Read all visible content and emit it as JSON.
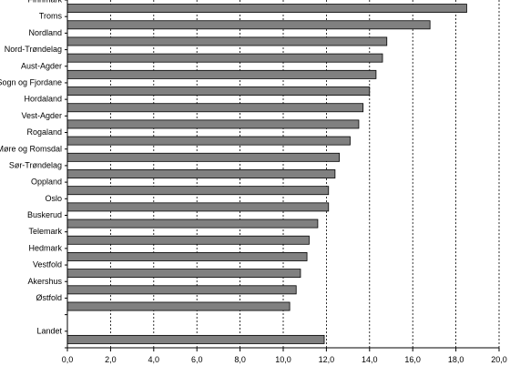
{
  "chart_data": {
    "type": "bar",
    "orientation": "horizontal",
    "categories": [
      "Finnmark",
      "Troms",
      "Nordland",
      "Nord-Trøndelag",
      "Aust-Agder",
      "Sogn og Fjordane",
      "Hordaland",
      "Vest-Agder",
      "Rogaland",
      "Møre og Romsdal",
      "Sør-Trøndelag",
      "Oppland",
      "Oslo",
      "Buskerud",
      "Telemark",
      "Hedmark",
      "Vestfold",
      "Akershus",
      "Østfold",
      "",
      "Landet"
    ],
    "values": [
      18.5,
      16.8,
      14.8,
      14.6,
      14.3,
      14.0,
      13.7,
      13.5,
      13.1,
      12.6,
      12.4,
      12.1,
      12.1,
      11.6,
      11.2,
      11.1,
      10.8,
      10.6,
      10.3,
      null,
      11.9
    ],
    "xlim": [
      0,
      20
    ],
    "xticks": [
      "0,0",
      "2,0",
      "4,0",
      "6,0",
      "8,0",
      "10,0",
      "12,0",
      "14,0",
      "16,0",
      "18,0",
      "20,0"
    ],
    "grid": "vertical dashed",
    "title": "",
    "xlabel": "",
    "ylabel": "",
    "colors": {
      "bar": "#808080",
      "bar_outline": "#000000"
    }
  }
}
